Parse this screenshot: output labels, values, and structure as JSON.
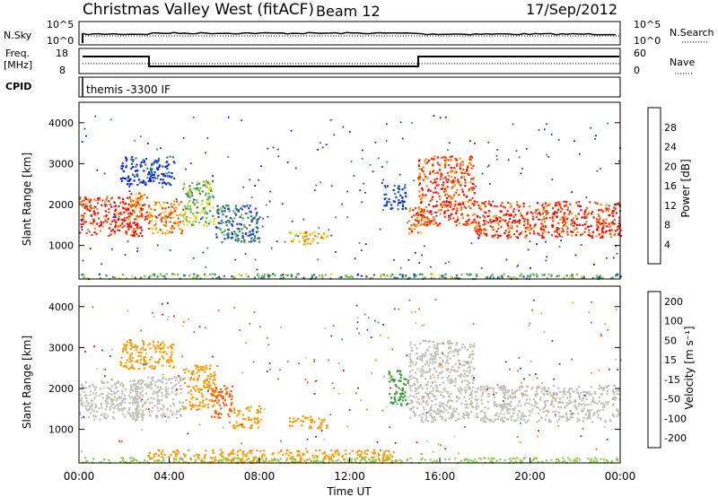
{
  "header": {
    "station": "Christmas Valley West (fitACF)",
    "beam": "Beam 12",
    "date": "17/Sep/2012"
  },
  "top_panels": {
    "nsky_label": "N.Sky",
    "nsky_ticks": [
      "10^5",
      "10^0"
    ],
    "nsearch_label": "N.Search",
    "nsearch_ticks": [
      "10^5",
      "10^0"
    ],
    "freq_label_1": "Freq.",
    "freq_label_2": "[MHz]",
    "freq_ticks": [
      "18",
      "8"
    ],
    "nave_label": "Nave",
    "nave_ticks": [
      "60",
      "0"
    ],
    "cpid_label": "CPID",
    "cpid_text": "themis -3300 IF"
  },
  "colors": {
    "power_scale": [
      "#0018ff",
      "#1e3cc8",
      "#2e8c5a",
      "#6cc24a",
      "#ffd000",
      "#ff8c00",
      "#ff3c00",
      "#ff0000"
    ],
    "velocity_scale": [
      "#ff0000",
      "#ff5a00",
      "#ff9a00",
      "#ffb000",
      "#c8c8be",
      "#8ad04a",
      "#3aa03a",
      "#2040c8"
    ],
    "ground_scatter": "#c0c0b8"
  },
  "chart_data": [
    {
      "type": "heatmap",
      "name": "power",
      "title": "",
      "xlabel": "",
      "ylabel": "Slant Range [km]",
      "xlim": [
        0,
        24
      ],
      "ylim": [
        180,
        4500
      ],
      "x_ticks": [
        "00:00",
        "04:00",
        "08:00",
        "12:00",
        "16:00",
        "20:00",
        "00:00"
      ],
      "y_ticks": [
        "1000",
        "2000",
        "3000",
        "4000"
      ],
      "colorbar_label": "Power [dB]",
      "colorbar_ticks": [
        "4",
        "8",
        "12",
        "16",
        "20",
        "24",
        "28"
      ],
      "regions": [
        {
          "t0": 0.0,
          "t1": 2.8,
          "r0": 1250,
          "r1": 2200,
          "level": 27
        },
        {
          "t0": 2.2,
          "t1": 3.0,
          "r0": 1600,
          "r1": 2300,
          "level": 24
        },
        {
          "t0": 3.0,
          "t1": 4.6,
          "r0": 1300,
          "r1": 2100,
          "level": 22
        },
        {
          "t0": 4.6,
          "t1": 6.0,
          "r0": 1500,
          "r1": 2600,
          "level": 14
        },
        {
          "t0": 6.0,
          "t1": 8.0,
          "r0": 1100,
          "r1": 2000,
          "level": 8
        },
        {
          "t0": 1.8,
          "t1": 4.2,
          "r0": 2500,
          "r1": 3200,
          "level": 5
        },
        {
          "t0": 9.3,
          "t1": 11.0,
          "r0": 1050,
          "r1": 1350,
          "level": 20
        },
        {
          "t0": 13.5,
          "t1": 14.5,
          "r0": 1900,
          "r1": 2500,
          "level": 6
        },
        {
          "t0": 14.6,
          "t1": 15.2,
          "r0": 1300,
          "r1": 2000,
          "level": 24
        },
        {
          "t0": 15.0,
          "t1": 17.5,
          "r0": 1500,
          "r1": 3200,
          "level": 26
        },
        {
          "t0": 17.5,
          "t1": 24.0,
          "r0": 1200,
          "r1": 2100,
          "level": 27
        },
        {
          "t0": 0.0,
          "t1": 24.0,
          "r0": 200,
          "r1": 330,
          "level": 12
        }
      ]
    },
    {
      "type": "heatmap",
      "name": "velocity",
      "title": "",
      "xlabel": "Time UT",
      "ylabel": "Slant Range [km]",
      "xlim": [
        0,
        24
      ],
      "ylim": [
        180,
        4500
      ],
      "x_ticks": [
        "00:00",
        "04:00",
        "08:00",
        "12:00",
        "16:00",
        "20:00",
        "00:00"
      ],
      "y_ticks": [
        "1000",
        "2000",
        "3000",
        "4000"
      ],
      "colorbar_label": "Velocity [m s⁻¹]",
      "colorbar_ticks": [
        "-200",
        "-100",
        "-50",
        "-15",
        "15",
        "50",
        "100",
        "200"
      ],
      "regions": [
        {
          "t0": 0.0,
          "t1": 2.8,
          "r0": 1250,
          "r1": 2200,
          "vel": 0
        },
        {
          "t0": 2.2,
          "t1": 4.6,
          "r0": 1300,
          "r1": 2300,
          "vel": 0
        },
        {
          "t0": 4.6,
          "t1": 6.0,
          "r0": 1500,
          "r1": 2600,
          "vel": -30
        },
        {
          "t0": 5.8,
          "t1": 6.8,
          "r0": 1300,
          "r1": 2100,
          "vel": -70
        },
        {
          "t0": 6.8,
          "t1": 8.0,
          "r0": 1050,
          "r1": 1600,
          "vel": -40
        },
        {
          "t0": 1.8,
          "t1": 4.2,
          "r0": 2500,
          "r1": 3200,
          "vel": -35
        },
        {
          "t0": 9.3,
          "t1": 11.0,
          "r0": 1050,
          "r1": 1350,
          "vel": -30
        },
        {
          "t0": 13.7,
          "t1": 14.6,
          "r0": 1600,
          "r1": 2500,
          "vel": 70
        },
        {
          "t0": 14.6,
          "t1": 17.5,
          "r0": 1200,
          "r1": 3200,
          "vel": 0
        },
        {
          "t0": 17.5,
          "t1": 24.0,
          "r0": 1200,
          "r1": 2100,
          "vel": 0
        },
        {
          "t0": 3.0,
          "t1": 14.0,
          "r0": 200,
          "r1": 520,
          "vel": -40
        },
        {
          "t0": 0.0,
          "t1": 24.0,
          "r0": 200,
          "r1": 330,
          "vel": 25
        }
      ]
    }
  ]
}
